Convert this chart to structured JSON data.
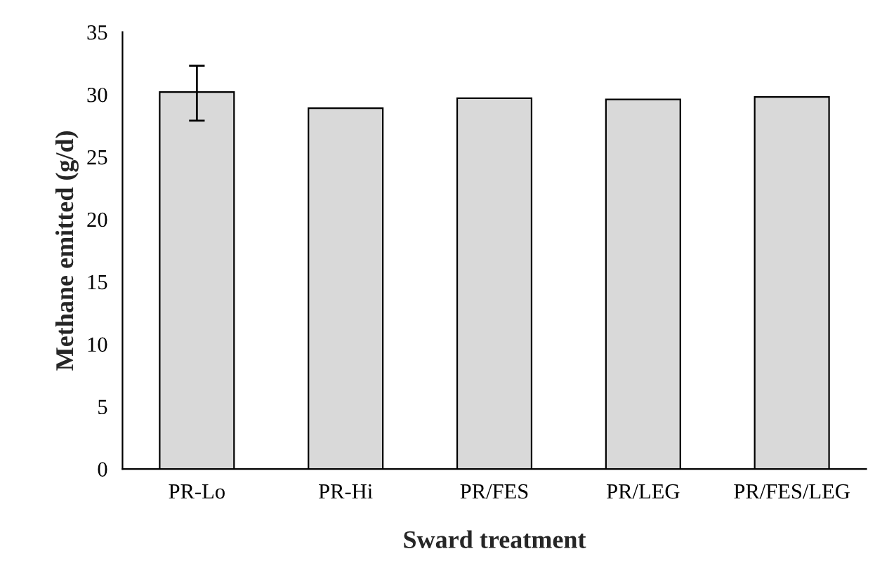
{
  "chart_data": {
    "type": "bar",
    "xlabel": "Sward treatment",
    "ylabel": "Methane emitted (g/d)",
    "categories": [
      "PR-Lo",
      "PR-Hi",
      "PR/FES",
      "PR/LEG",
      "PR/FES/LEG"
    ],
    "values": [
      30.2,
      28.9,
      29.7,
      29.6,
      29.8
    ],
    "errors": [
      [
        27.9,
        32.3
      ],
      null,
      null,
      null,
      null
    ],
    "color": "#d9d9d9",
    "ylim": [
      0,
      35
    ],
    "yticks": [
      0,
      5,
      10,
      15,
      20,
      25,
      30,
      35
    ],
    "grid": false
  }
}
